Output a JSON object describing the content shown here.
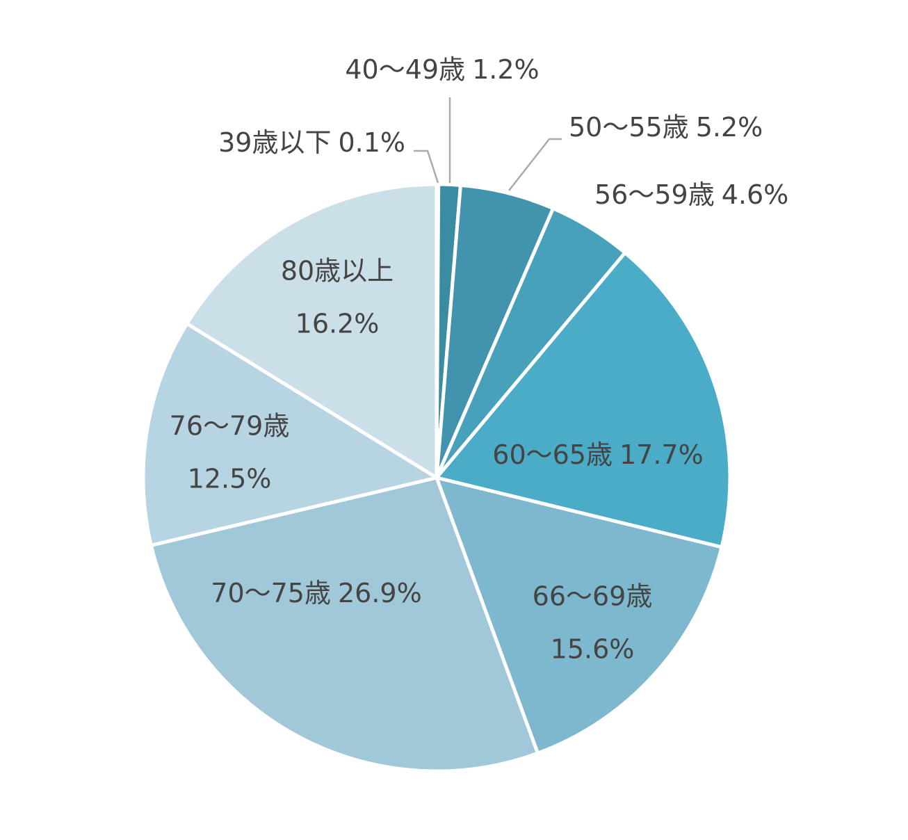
{
  "chart_data": {
    "type": "pie",
    "categories": [
      "39歳以下",
      "40〜49歳",
      "50〜55歳",
      "56〜59歳",
      "60〜65歳",
      "66〜69歳",
      "70〜75歳",
      "76〜79歳",
      "80歳以上"
    ],
    "values": [
      0.1,
      1.2,
      5.2,
      4.6,
      17.7,
      15.6,
      26.9,
      12.5,
      16.2
    ],
    "value_labels": [
      "0.1%",
      "1.2%",
      "5.2%",
      "4.6%",
      "17.7%",
      "15.6%",
      "26.9%",
      "12.5%",
      "16.2%"
    ],
    "colors": [
      "#3a8ba1",
      "#3a8ca3",
      "#4293ae",
      "#47a1ba",
      "#4aacc7",
      "#7eb8ce",
      "#a0c8d8",
      "#b6d4e1",
      "#cbdfe8"
    ]
  }
}
